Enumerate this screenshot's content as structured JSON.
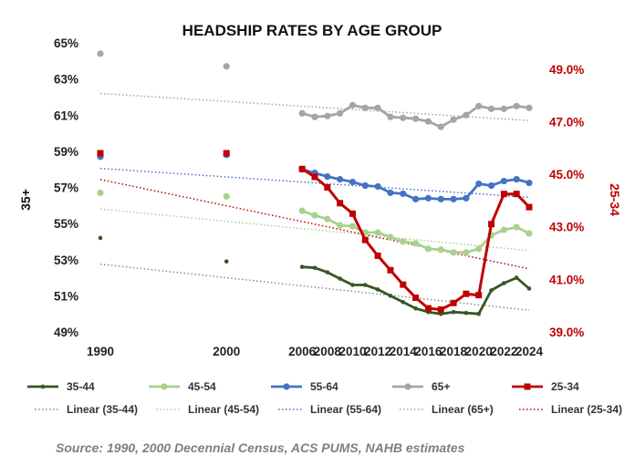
{
  "chart_data": {
    "type": "line",
    "title": "HEADSHIP RATES BY AGE GROUP",
    "x": [
      1990,
      2000,
      2006,
      2007,
      2008,
      2009,
      2010,
      2011,
      2012,
      2013,
      2014,
      2015,
      2016,
      2017,
      2018,
      2019,
      2020,
      2021,
      2022,
      2023,
      2024
    ],
    "x_tick_labels": [
      "1990",
      "2000",
      "2006",
      "2008",
      "2010",
      "2012",
      "2014",
      "2016",
      "2018",
      "2020",
      "2022",
      "2024"
    ],
    "y_left": {
      "label": "35+",
      "range": [
        49,
        65
      ],
      "tick_labels": [
        "49%",
        "51%",
        "53%",
        "55%",
        "57%",
        "59%",
        "61%",
        "63%",
        "65%"
      ]
    },
    "y_right": {
      "label": "25-34",
      "range": [
        39.0,
        50.0
      ],
      "tick_labels": [
        "39.0%",
        "41.0%",
        "43.0%",
        "45.0%",
        "47.0%",
        "49.0%"
      ]
    },
    "series": [
      {
        "name": "35-44",
        "axis": "left",
        "color": "#375623",
        "values": [
          54.2,
          52.9,
          52.6,
          52.55,
          52.3,
          51.95,
          51.6,
          51.6,
          51.35,
          51.0,
          50.65,
          50.3,
          50.1,
          50.0,
          50.1,
          50.05,
          50.0,
          51.3,
          51.7,
          52.0,
          51.4
        ]
      },
      {
        "name": "45-54",
        "axis": "left",
        "color": "#a9d18e",
        "values": [
          56.7,
          56.5,
          55.7,
          55.45,
          55.25,
          54.9,
          54.85,
          54.5,
          54.5,
          54.25,
          54.0,
          53.9,
          53.6,
          53.55,
          53.4,
          53.4,
          53.6,
          54.35,
          54.65,
          54.8,
          54.45
        ]
      },
      {
        "name": "55-64",
        "axis": "left",
        "color": "#4472c4",
        "values": [
          58.7,
          58.8,
          58.0,
          57.8,
          57.6,
          57.45,
          57.3,
          57.1,
          57.05,
          56.7,
          56.65,
          56.35,
          56.4,
          56.35,
          56.35,
          56.4,
          57.2,
          57.1,
          57.35,
          57.45,
          57.25
        ]
      },
      {
        "name": "65+",
        "axis": "left",
        "color": "#a5a5a5",
        "values": [
          64.4,
          63.7,
          61.1,
          60.9,
          60.95,
          61.1,
          61.55,
          61.4,
          61.4,
          60.9,
          60.85,
          60.8,
          60.65,
          60.35,
          60.75,
          61.0,
          61.5,
          61.35,
          61.35,
          61.5,
          61.4
        ]
      },
      {
        "name": "25-34",
        "axis": "right",
        "color": "#c00000",
        "values": [
          45.8,
          45.8,
          45.2,
          44.9,
          44.5,
          43.9,
          43.5,
          42.5,
          41.9,
          41.35,
          40.8,
          40.3,
          39.9,
          39.85,
          40.1,
          40.45,
          40.4,
          43.1,
          44.25,
          44.25,
          43.75
        ]
      }
    ],
    "trendlines": [
      {
        "name": "Linear (35-44)",
        "axis": "left",
        "color": "#8c8c8c",
        "start": [
          1990,
          52.75
        ],
        "end": [
          2024,
          50.2
        ]
      },
      {
        "name": "Linear (45-54)",
        "axis": "left",
        "color": "#a9d18e",
        "start": [
          1990,
          55.8
        ],
        "end": [
          2024,
          53.5
        ]
      },
      {
        "name": "Linear (55-64)",
        "axis": "left",
        "color": "#4472c4",
        "start": [
          1990,
          58.05
        ],
        "end": [
          2024,
          56.45
        ]
      },
      {
        "name": "Linear (65+)",
        "axis": "left",
        "color": "#a5a5a5",
        "start": [
          1990,
          62.2
        ],
        "end": [
          2024,
          60.7
        ]
      },
      {
        "name": "Linear (25-34)",
        "axis": "right",
        "color": "#c00000",
        "start": [
          1990,
          44.8
        ],
        "end": [
          2024,
          41.4
        ]
      }
    ],
    "grid": false,
    "legend_position": "bottom",
    "source": "Source: 1990, 2000 Decennial Census, ACS PUMS, NAHB estimates"
  }
}
